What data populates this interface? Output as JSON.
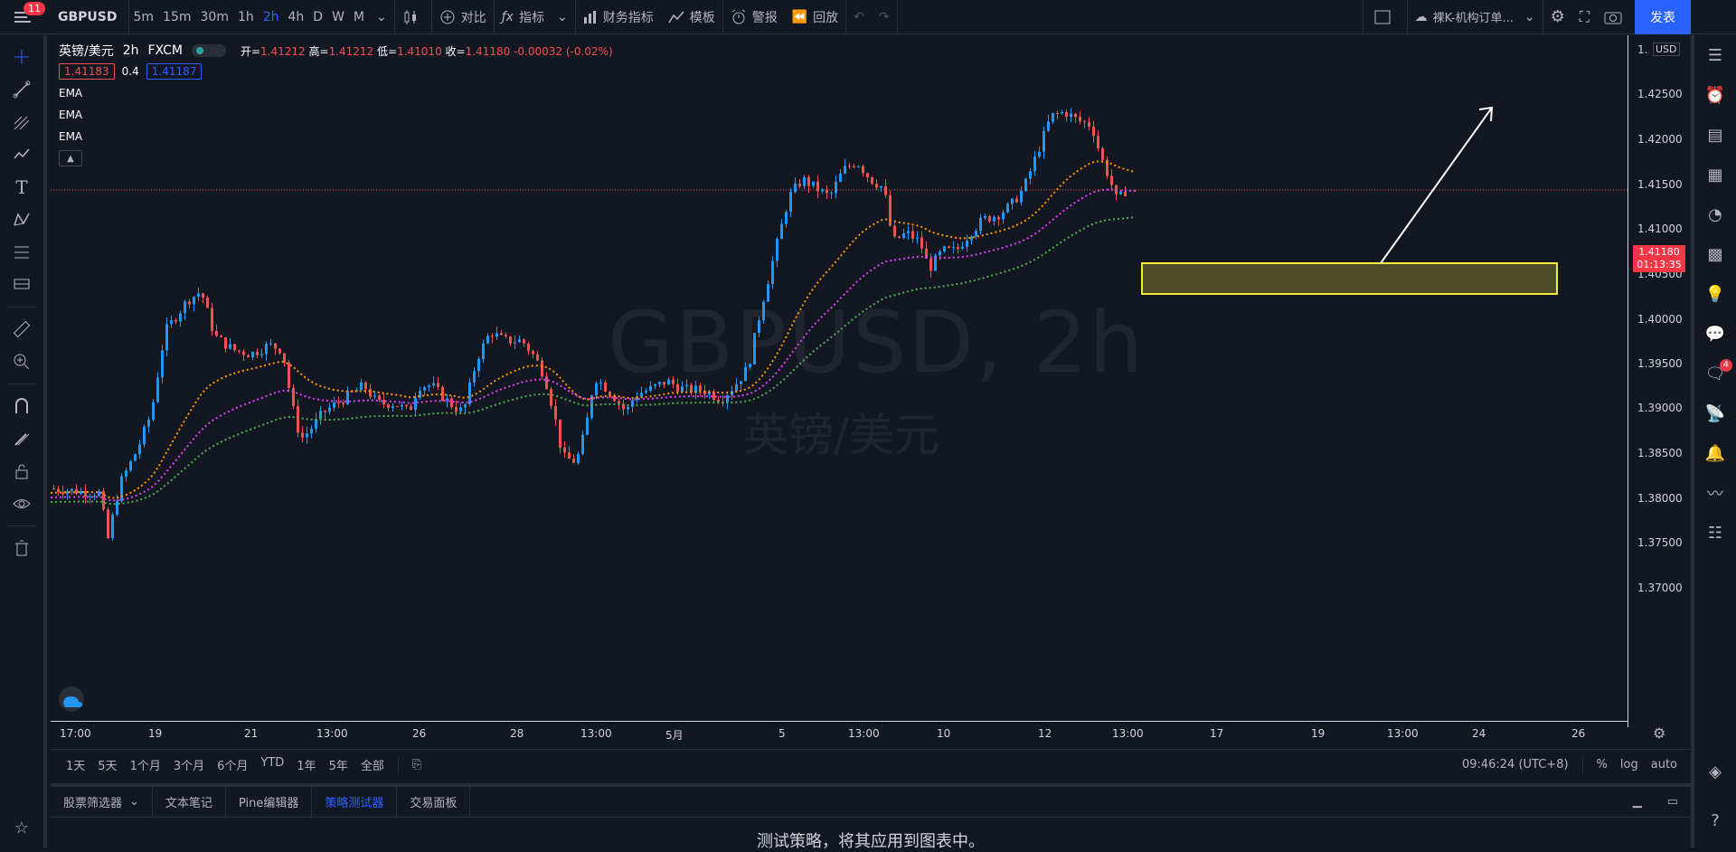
{
  "topbar": {
    "notifications": "11",
    "symbol": "GBPUSD",
    "intervals": [
      "5m",
      "15m",
      "30m",
      "1h",
      "2h",
      "4h",
      "D",
      "W",
      "M"
    ],
    "active_interval": "2h",
    "compare_label": "对比",
    "indicators_label": "指标",
    "financials_label": "财务指标",
    "templates_label": "模板",
    "alert_label": "警报",
    "replay_label": "回放",
    "layout_name": "裸K-机构订单...",
    "publish_label": "发表"
  },
  "legend": {
    "name": "英镑/美元",
    "interval": "2h",
    "source": "FXCM",
    "open_label": "开=",
    "open": "1.41212",
    "high_label": "高=",
    "high": "1.41212",
    "low_label": "低=",
    "low": "1.41010",
    "close_label": "收=",
    "close": "1.41180",
    "change": "-0.00032 (-0.02%)",
    "bid": "1.41183",
    "spread": "0.4",
    "ask": "1.41187",
    "indicators": [
      "EMA",
      "EMA",
      "EMA"
    ]
  },
  "watermark": {
    "symbol": "GBPUSD, 2h",
    "name": "英镑/美元"
  },
  "price_axis": {
    "currency": "USD",
    "labels": [
      "1.42500",
      "1.42000",
      "1.41500",
      "1.41000",
      "1.40500",
      "1.40000",
      "1.39500",
      "1.39000",
      "1.38500",
      "1.38000",
      "1.37500",
      "1.37000"
    ],
    "current_price": "1.41180",
    "countdown": "01:13:35",
    "top_label": "1."
  },
  "time_axis": {
    "labels": [
      "17:00",
      "19",
      "21",
      "13:00",
      "26",
      "28",
      "13:00",
      "5月",
      "5",
      "13:00",
      "10",
      "12",
      "13:00",
      "17",
      "19",
      "13:00",
      "24",
      "26"
    ]
  },
  "range_bar": {
    "ranges": [
      "1天",
      "5天",
      "1个月",
      "3个月",
      "6个月",
      "YTD",
      "1年",
      "5年",
      "全部"
    ],
    "clock": "09:46:24 (UTC+8)",
    "percent": "%",
    "log": "log",
    "auto": "auto"
  },
  "bottom_panel": {
    "tabs": [
      "股票筛选器",
      "文本笔记",
      "Pine编辑器",
      "策略测试器",
      "交易面板"
    ],
    "active_tab": "策略测试器",
    "message": "测试策略，将其应用到图表中。"
  },
  "right_toolbar": {
    "chat_badge": "4"
  },
  "colors": {
    "up": "#2196f3",
    "down": "#ef5350",
    "ema_fast": "#ff9800",
    "ema_mid": "#e040fb",
    "ema_slow": "#4caf50",
    "zone": "#ffeb3b"
  }
}
